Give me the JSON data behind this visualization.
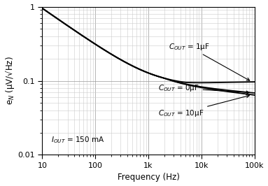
{
  "xlabel": "Frequency (Hz)",
  "ylabel": "e$_N$ (μV/√Hz)",
  "xlim": [
    10,
    100000
  ],
  "ylim": [
    0.01,
    1
  ],
  "line_color": "#000000",
  "grid_major_color": "#999999",
  "grid_minor_color": "#cccccc",
  "bg_color": "#ffffff",
  "curve_lw": 1.3
}
